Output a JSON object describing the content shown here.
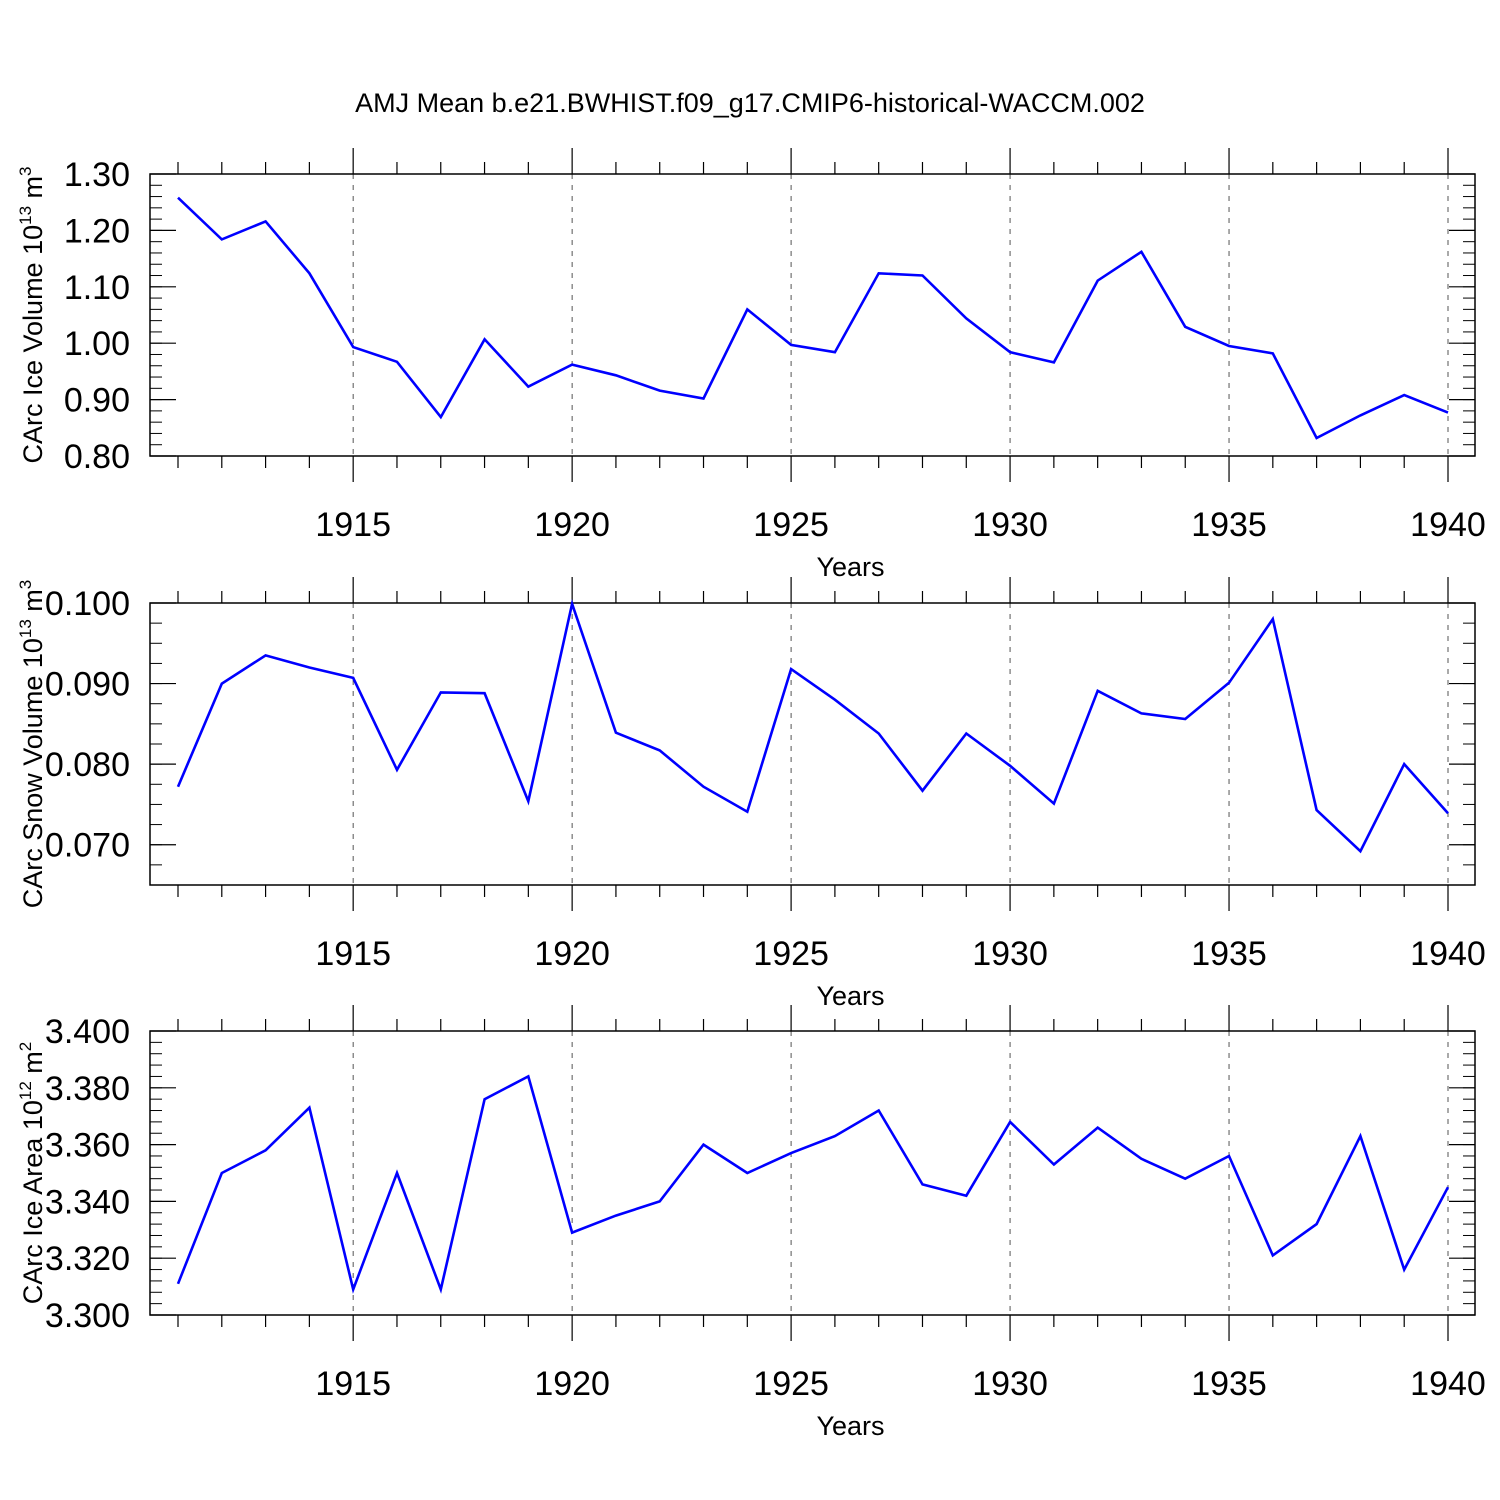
{
  "title": "AMJ Mean b.e21.BWHIST.f09_g17.CMIP6-historical-WACCM.002",
  "line_color": "#0000ff",
  "chart_data": [
    {
      "type": "line",
      "title": "AMJ Mean b.e21.BWHIST.f09_g17.CMIP6-historical-WACCM.002",
      "xlabel": "Years",
      "ylabel_main": "CArc Ice Volume 10",
      "ylabel_exp": "13",
      "ylabel_unit": " m",
      "ylabel_unit_exp": "3",
      "xlim": [
        1911,
        1940
      ],
      "ylim": [
        0.8,
        1.3
      ],
      "x_ticks": [
        "1915",
        "1920",
        "1925",
        "1930",
        "1935",
        "1940"
      ],
      "y_ticks": [
        "0.80",
        "0.90",
        "1.00",
        "1.10",
        "1.20",
        "1.30"
      ],
      "grid": "dashed vertical lines at major x ticks",
      "x": [
        1911,
        1912,
        1913,
        1914,
        1915,
        1916,
        1917,
        1918,
        1919,
        1920,
        1921,
        1922,
        1923,
        1924,
        1925,
        1926,
        1927,
        1928,
        1929,
        1930,
        1931,
        1932,
        1933,
        1934,
        1935,
        1936,
        1937,
        1938,
        1939,
        1940
      ],
      "values": [
        1.258,
        1.184,
        1.216,
        1.124,
        0.993,
        0.967,
        0.869,
        1.007,
        0.923,
        0.962,
        0.943,
        0.916,
        0.902,
        1.06,
        0.997,
        0.984,
        1.124,
        1.12,
        1.044,
        0.984,
        0.966,
        1.111,
        1.162,
        1.029,
        0.995,
        0.982,
        0.832,
        0.872,
        0.908,
        0.877
      ]
    },
    {
      "type": "line",
      "xlabel": "Years",
      "ylabel_main": "CArc Snow Volume 10",
      "ylabel_exp": "13",
      "ylabel_unit": " m",
      "ylabel_unit_exp": "3",
      "xlim": [
        1911,
        1940
      ],
      "ylim": [
        0.065,
        0.1
      ],
      "x_ticks": [
        "1915",
        "1920",
        "1925",
        "1930",
        "1935",
        "1940"
      ],
      "y_ticks": [
        "0.070",
        "0.080",
        "0.090",
        "0.100"
      ],
      "grid": "dashed vertical lines at major x ticks",
      "x": [
        1911,
        1912,
        1913,
        1914,
        1915,
        1916,
        1917,
        1918,
        1919,
        1920,
        1921,
        1922,
        1923,
        1924,
        1925,
        1926,
        1927,
        1928,
        1929,
        1930,
        1931,
        1932,
        1933,
        1934,
        1935,
        1936,
        1937,
        1938,
        1939,
        1940
      ],
      "values": [
        0.0772,
        0.09,
        0.0935,
        0.092,
        0.0907,
        0.0793,
        0.0889,
        0.0888,
        0.0754,
        0.0999,
        0.0839,
        0.0817,
        0.0772,
        0.0741,
        0.0918,
        0.088,
        0.0838,
        0.0767,
        0.0838,
        0.0798,
        0.0751,
        0.0891,
        0.0863,
        0.0856,
        0.0901,
        0.098,
        0.0743,
        0.0692,
        0.08,
        0.0739
      ]
    },
    {
      "type": "line",
      "xlabel": "Years",
      "ylabel_main": "CArc Ice Area 10",
      "ylabel_exp": "12",
      "ylabel_unit": " m",
      "ylabel_unit_exp": "2",
      "xlim": [
        1911,
        1940
      ],
      "ylim": [
        3.3,
        3.4
      ],
      "x_ticks": [
        "1915",
        "1920",
        "1925",
        "1930",
        "1935",
        "1940"
      ],
      "y_ticks": [
        "3.300",
        "3.320",
        "3.340",
        "3.360",
        "3.380",
        "3.400"
      ],
      "grid": "dashed vertical lines at major x ticks",
      "x": [
        1911,
        1912,
        1913,
        1914,
        1915,
        1916,
        1917,
        1918,
        1919,
        1920,
        1921,
        1922,
        1923,
        1924,
        1925,
        1926,
        1927,
        1928,
        1929,
        1930,
        1931,
        1932,
        1933,
        1934,
        1935,
        1936,
        1937,
        1938,
        1939,
        1940
      ],
      "values": [
        3.311,
        3.35,
        3.358,
        3.373,
        3.309,
        3.35,
        3.309,
        3.376,
        3.384,
        3.329,
        3.335,
        3.34,
        3.36,
        3.35,
        3.357,
        3.363,
        3.372,
        3.346,
        3.342,
        3.368,
        3.353,
        3.366,
        3.355,
        3.348,
        3.356,
        3.321,
        3.332,
        3.363,
        3.316,
        3.345
      ]
    }
  ]
}
